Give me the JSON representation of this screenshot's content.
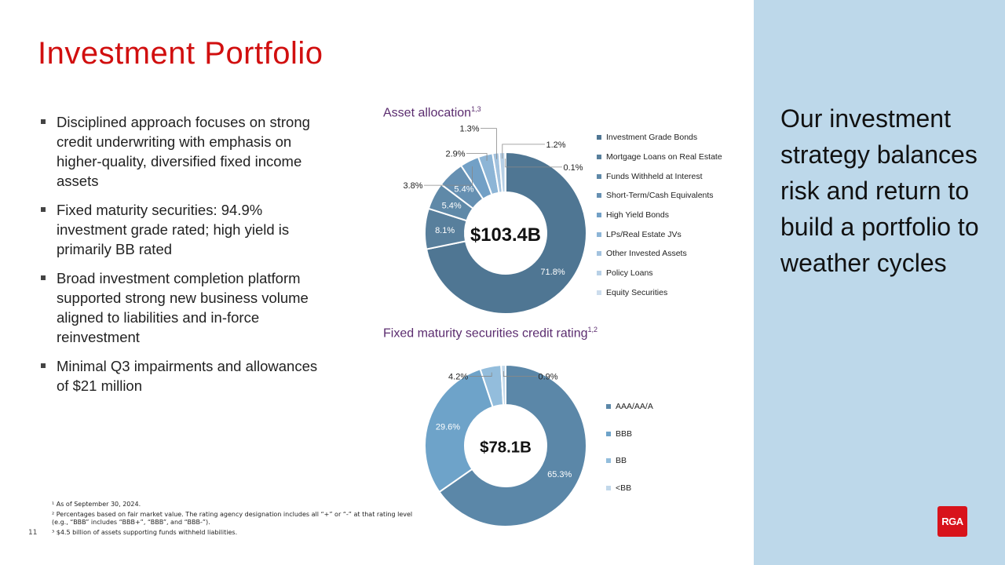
{
  "title": "Investment Portfolio",
  "bullets": [
    "Disciplined approach focuses on strong credit underwriting with emphasis on higher-quality, diversified fixed income assets",
    "Fixed maturity securities: 94.9% investment grade rated; high yield is primarily BB rated",
    "Broad investment completion platform supported strong new business volume aligned to liabilities and in-force reinvestment",
    "Minimal Q3 impairments and allowances of $21 million"
  ],
  "footnotes": [
    "¹ As of September 30, 2024.",
    "² Percentages based on fair market value. The rating agency designation includes all “+” or “-” at that rating level (e.g., “BBB” includes “BBB+”, “BBB”, and “BBB-”).",
    "³ $4.5 billion of assets supporting funds withheld liabilities."
  ],
  "page_number": "11",
  "panel_text": "Our investment strategy balances risk and return to build a portfolio to weather cycles",
  "logo": "RGA",
  "colors": {
    "title": "#d10f0f",
    "chart_title": "#5b2c6f",
    "panel": "#bdd8ea"
  },
  "chart_data": [
    {
      "type": "pie",
      "donut": true,
      "title": "Asset allocation",
      "title_sup": "1,3",
      "center_label": "$103.4B",
      "legend_position": "right",
      "categories": [
        "Investment Grade Bonds",
        "Mortgage Loans on Real Estate",
        "Funds Withheld at Interest",
        "Short-Term/Cash Equivalents",
        "High Yield Bonds",
        "LPs/Real Estate JVs",
        "Other Invested Assets",
        "Policy Loans",
        "Equity Securities"
      ],
      "values": [
        71.8,
        8.1,
        5.4,
        5.4,
        3.8,
        2.9,
        1.3,
        1.2,
        0.1
      ],
      "labels": [
        "71.8%",
        "8.1%",
        "5.4%",
        "5.4%",
        "3.8%",
        "2.9%",
        "1.3%",
        "1.2%",
        "0.1%"
      ],
      "colors": [
        "#4f7693",
        "#587f9c",
        "#5f89a8",
        "#6690b2",
        "#72a0c6",
        "#8db5d6",
        "#a2c2de",
        "#b7d0e6",
        "#ccdded"
      ]
    },
    {
      "type": "pie",
      "donut": true,
      "title": "Fixed maturity securities credit rating",
      "title_sup": "1,2",
      "center_label": "$78.1B",
      "legend_position": "right",
      "categories": [
        "AAA/AA/A",
        "BBB",
        "BB",
        "<BB"
      ],
      "values": [
        65.3,
        29.6,
        4.2,
        0.9
      ],
      "labels": [
        "65.3%",
        "29.6%",
        "4.2%",
        "0.9%"
      ],
      "colors": [
        "#5b87a8",
        "#6ea3c9",
        "#93bddc",
        "#c2d8ea"
      ]
    }
  ]
}
